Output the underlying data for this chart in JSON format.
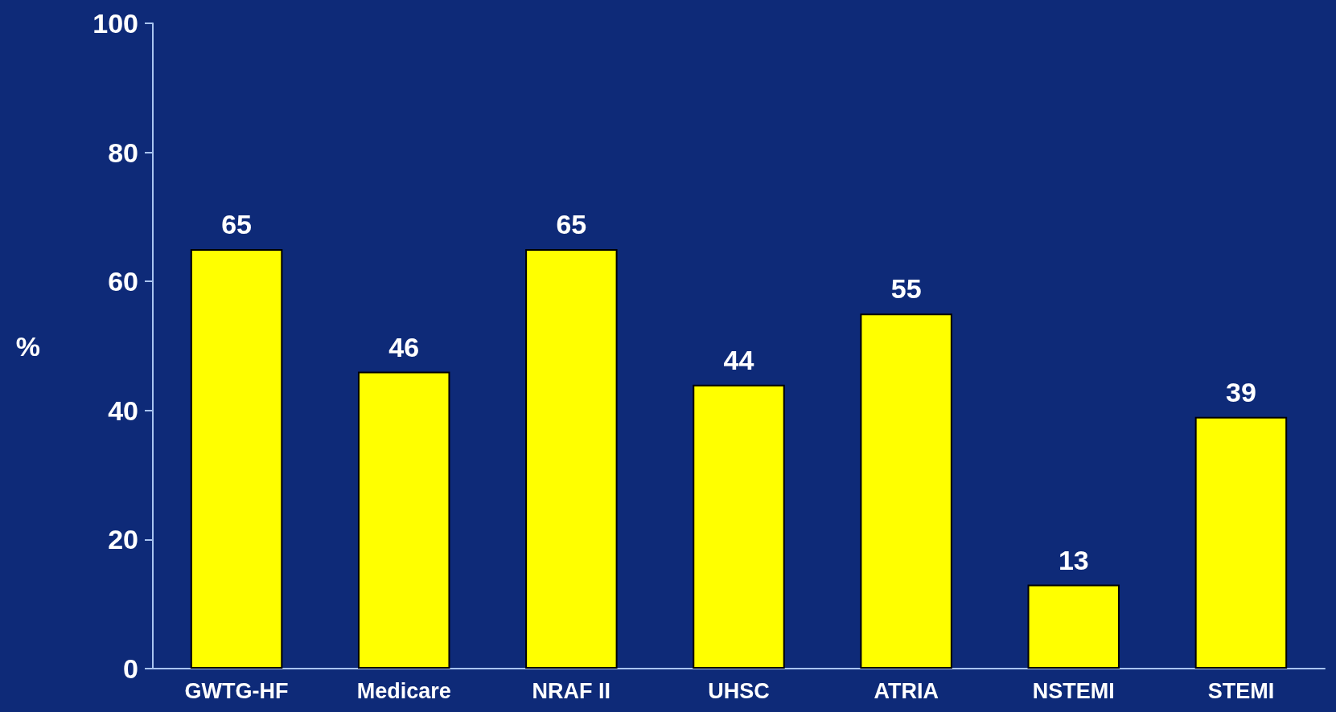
{
  "chart_data": {
    "type": "bar",
    "ylabel": "%",
    "categories": [
      "GWTG-HF",
      "Medicare",
      "NRAF II",
      "UHSC",
      "ATRIA",
      "NSTEMI",
      "STEMI"
    ],
    "values": [
      65,
      46,
      65,
      44,
      55,
      13,
      39
    ],
    "color": "#ffff00",
    "ylim": [
      0,
      100
    ],
    "yticks": [
      0,
      20,
      40,
      60,
      80,
      100
    ],
    "grid": false,
    "data_labels": true
  }
}
